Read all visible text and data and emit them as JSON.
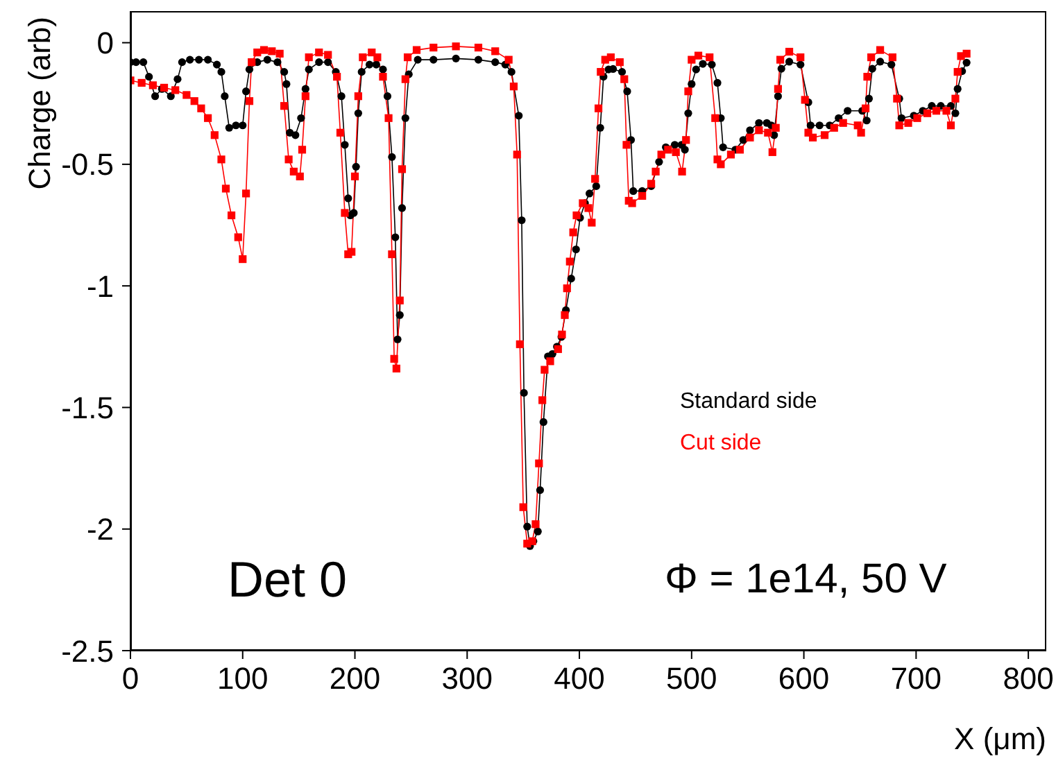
{
  "chart_data": {
    "type": "line",
    "xlabel": "X (μm)",
    "ylabel": "Charge (arb)",
    "xlim": [
      0,
      816
    ],
    "xticks": [
      0,
      100,
      200,
      300,
      400,
      500,
      600,
      700,
      800
    ],
    "ylim": [
      -2.5,
      0.13
    ],
    "yticks": [
      -2.5,
      -2,
      -1.5,
      -1,
      -0.5,
      0
    ],
    "legend": "right",
    "grid": false,
    "annotations": [
      "Det 0",
      "Φ = 1e14, 50 V"
    ],
    "series": [
      {
        "name": "Standard side",
        "color": "#000000",
        "marker": "circle",
        "x": [
          0,
          5,
          11.5,
          16.5,
          22,
          28,
          36,
          42,
          46,
          53,
          61,
          69,
          77,
          81,
          84,
          88,
          94,
          100,
          103,
          106,
          113,
          122,
          131,
          137,
          139,
          142,
          147,
          152,
          156,
          159,
          168,
          176,
          183,
          188,
          191,
          194,
          196,
          199,
          201,
          203,
          206,
          213,
          219,
          225,
          229,
          233,
          236,
          238,
          240,
          242,
          245,
          248,
          256,
          270,
          290,
          310,
          325,
          334,
          339.5,
          346,
          348.6,
          350.6,
          353.5,
          356,
          359,
          363,
          365,
          368,
          372,
          376,
          380,
          384,
          388,
          392.7,
          397,
          400.6,
          405,
          409,
          415,
          418.6,
          421.5,
          426,
          430,
          438,
          442.6,
          446,
          448,
          456,
          464,
          471,
          477,
          485,
          491,
          494,
          497,
          500,
          504,
          510,
          518,
          523,
          526,
          528,
          539,
          546,
          552,
          560,
          567,
          571,
          573.5,
          577,
          580,
          587,
          597,
          604,
          606,
          614,
          623,
          631,
          639,
          652,
          656,
          658,
          661,
          668,
          678,
          685,
          687,
          698,
          706,
          714,
          722,
          731,
          735,
          737,
          741,
          745
        ],
        "values": [
          -0.08,
          -0.08,
          -0.08,
          -0.14,
          -0.22,
          -0.19,
          -0.22,
          -0.15,
          -0.08,
          -0.07,
          -0.07,
          -0.07,
          -0.09,
          -0.12,
          -0.22,
          -0.35,
          -0.34,
          -0.34,
          -0.2,
          -0.11,
          -0.08,
          -0.07,
          -0.08,
          -0.12,
          -0.17,
          -0.37,
          -0.38,
          -0.31,
          -0.19,
          -0.11,
          -0.08,
          -0.08,
          -0.12,
          -0.22,
          -0.42,
          -0.64,
          -0.71,
          -0.7,
          -0.51,
          -0.29,
          -0.12,
          -0.09,
          -0.09,
          -0.11,
          -0.22,
          -0.47,
          -0.8,
          -1.22,
          -1.12,
          -0.68,
          -0.31,
          -0.13,
          -0.07,
          -0.07,
          -0.065,
          -0.07,
          -0.08,
          -0.09,
          -0.12,
          -0.3,
          -0.73,
          -1.44,
          -1.99,
          -2.07,
          -2.05,
          -2.01,
          -1.84,
          -1.56,
          -1.29,
          -1.28,
          -1.25,
          -1.21,
          -1.1,
          -0.97,
          -0.85,
          -0.72,
          -0.66,
          -0.62,
          -0.59,
          -0.35,
          -0.14,
          -0.11,
          -0.108,
          -0.12,
          -0.2,
          -0.4,
          -0.61,
          -0.61,
          -0.59,
          -0.49,
          -0.43,
          -0.42,
          -0.42,
          -0.44,
          -0.29,
          -0.17,
          -0.11,
          -0.087,
          -0.09,
          -0.165,
          -0.31,
          -0.43,
          -0.44,
          -0.4,
          -0.36,
          -0.33,
          -0.33,
          -0.34,
          -0.38,
          -0.22,
          -0.107,
          -0.078,
          -0.09,
          -0.245,
          -0.34,
          -0.34,
          -0.34,
          -0.31,
          -0.28,
          -0.28,
          -0.32,
          -0.23,
          -0.107,
          -0.078,
          -0.09,
          -0.23,
          -0.31,
          -0.3,
          -0.28,
          -0.26,
          -0.26,
          -0.26,
          -0.29,
          -0.19,
          -0.117,
          -0.082
        ]
      },
      {
        "name": "Cut side",
        "color": "#ff0000",
        "marker": "square",
        "x": [
          0,
          10,
          20,
          30,
          40,
          50,
          57,
          63,
          69,
          75,
          81,
          85,
          90,
          96,
          100,
          103,
          106,
          108,
          113,
          119,
          126,
          133,
          137,
          141,
          145.5,
          151,
          153,
          156,
          159,
          168,
          176,
          184,
          187,
          191,
          194,
          197,
          200,
          203,
          207,
          215,
          220,
          225,
          230,
          233,
          235,
          237,
          240,
          242,
          245,
          247,
          255,
          270,
          290,
          310,
          325,
          337,
          341.5,
          344.5,
          347,
          350,
          353.5,
          358,
          361,
          364,
          367,
          369,
          374,
          381,
          384.5,
          387,
          389,
          391.5,
          394.5,
          397.5,
          403,
          408,
          411,
          414,
          417,
          419,
          423,
          428,
          436,
          440,
          442,
          444,
          447,
          456,
          464,
          468,
          473,
          479,
          486,
          491.5,
          495,
          497,
          500,
          506,
          516,
          521,
          523,
          526,
          535,
          543,
          552,
          560,
          568,
          572,
          575,
          577,
          579,
          587,
          597,
          601,
          604,
          608,
          618.5,
          627,
          635,
          648,
          651,
          655,
          656.5,
          660,
          668,
          679,
          683,
          685,
          693,
          701,
          710,
          718,
          727,
          731,
          735,
          737,
          740,
          745
        ],
        "values": [
          -0.155,
          -0.165,
          -0.175,
          -0.185,
          -0.195,
          -0.215,
          -0.24,
          -0.27,
          -0.31,
          -0.38,
          -0.48,
          -0.6,
          -0.71,
          -0.8,
          -0.89,
          -0.62,
          -0.24,
          -0.08,
          -0.04,
          -0.03,
          -0.035,
          -0.045,
          -0.26,
          -0.48,
          -0.53,
          -0.55,
          -0.44,
          -0.22,
          -0.06,
          -0.04,
          -0.05,
          -0.14,
          -0.37,
          -0.7,
          -0.87,
          -0.86,
          -0.55,
          -0.22,
          -0.06,
          -0.04,
          -0.06,
          -0.14,
          -0.31,
          -0.87,
          -1.3,
          -1.34,
          -1.06,
          -0.52,
          -0.15,
          -0.06,
          -0.03,
          -0.02,
          -0.015,
          -0.02,
          -0.035,
          -0.07,
          -0.18,
          -0.46,
          -1.24,
          -1.91,
          -2.06,
          -2.05,
          -1.98,
          -1.73,
          -1.47,
          -1.345,
          -1.31,
          -1.26,
          -1.2,
          -1.12,
          -1.01,
          -0.9,
          -0.78,
          -0.71,
          -0.66,
          -0.68,
          -0.74,
          -0.56,
          -0.27,
          -0.12,
          -0.07,
          -0.06,
          -0.08,
          -0.15,
          -0.42,
          -0.65,
          -0.66,
          -0.63,
          -0.58,
          -0.53,
          -0.46,
          -0.44,
          -0.45,
          -0.53,
          -0.4,
          -0.2,
          -0.07,
          -0.053,
          -0.06,
          -0.31,
          -0.48,
          -0.5,
          -0.46,
          -0.44,
          -0.39,
          -0.36,
          -0.37,
          -0.45,
          -0.35,
          -0.19,
          -0.07,
          -0.037,
          -0.06,
          -0.235,
          -0.37,
          -0.39,
          -0.38,
          -0.35,
          -0.33,
          -0.34,
          -0.37,
          -0.27,
          -0.14,
          -0.06,
          -0.03,
          -0.06,
          -0.23,
          -0.34,
          -0.33,
          -0.31,
          -0.29,
          -0.28,
          -0.28,
          -0.34,
          -0.23,
          -0.12,
          -0.055,
          -0.045
        ]
      }
    ]
  }
}
